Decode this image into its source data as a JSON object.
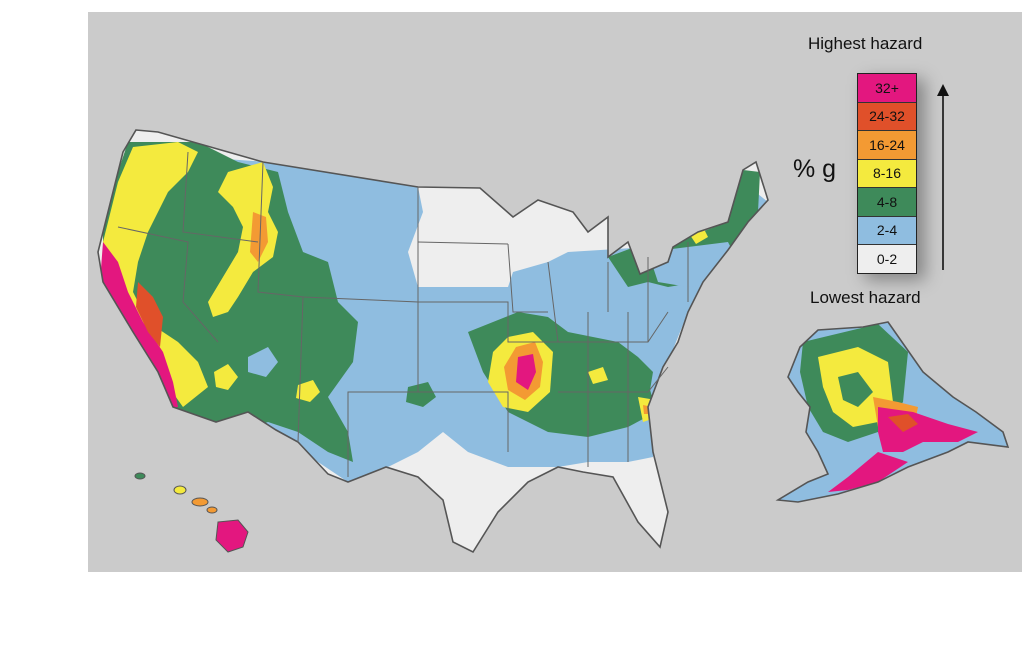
{
  "legend": {
    "title_top": "Highest hazard",
    "title_bottom": "Lowest hazard",
    "unit": "% g",
    "classes": [
      {
        "label": "32+",
        "color": "#e3177f"
      },
      {
        "label": "24-32",
        "color": "#e0502a"
      },
      {
        "label": "16-24",
        "color": "#f39a33"
      },
      {
        "label": "8-16",
        "color": "#f4ea3e"
      },
      {
        "label": "4-8",
        "color": "#3e8a5a"
      },
      {
        "label": "2-4",
        "color": "#8fbde0"
      },
      {
        "label": "0-2",
        "color": "#eeeeee"
      }
    ]
  },
  "colors": {
    "background": "#cbcbcb",
    "border": "#555555"
  }
}
